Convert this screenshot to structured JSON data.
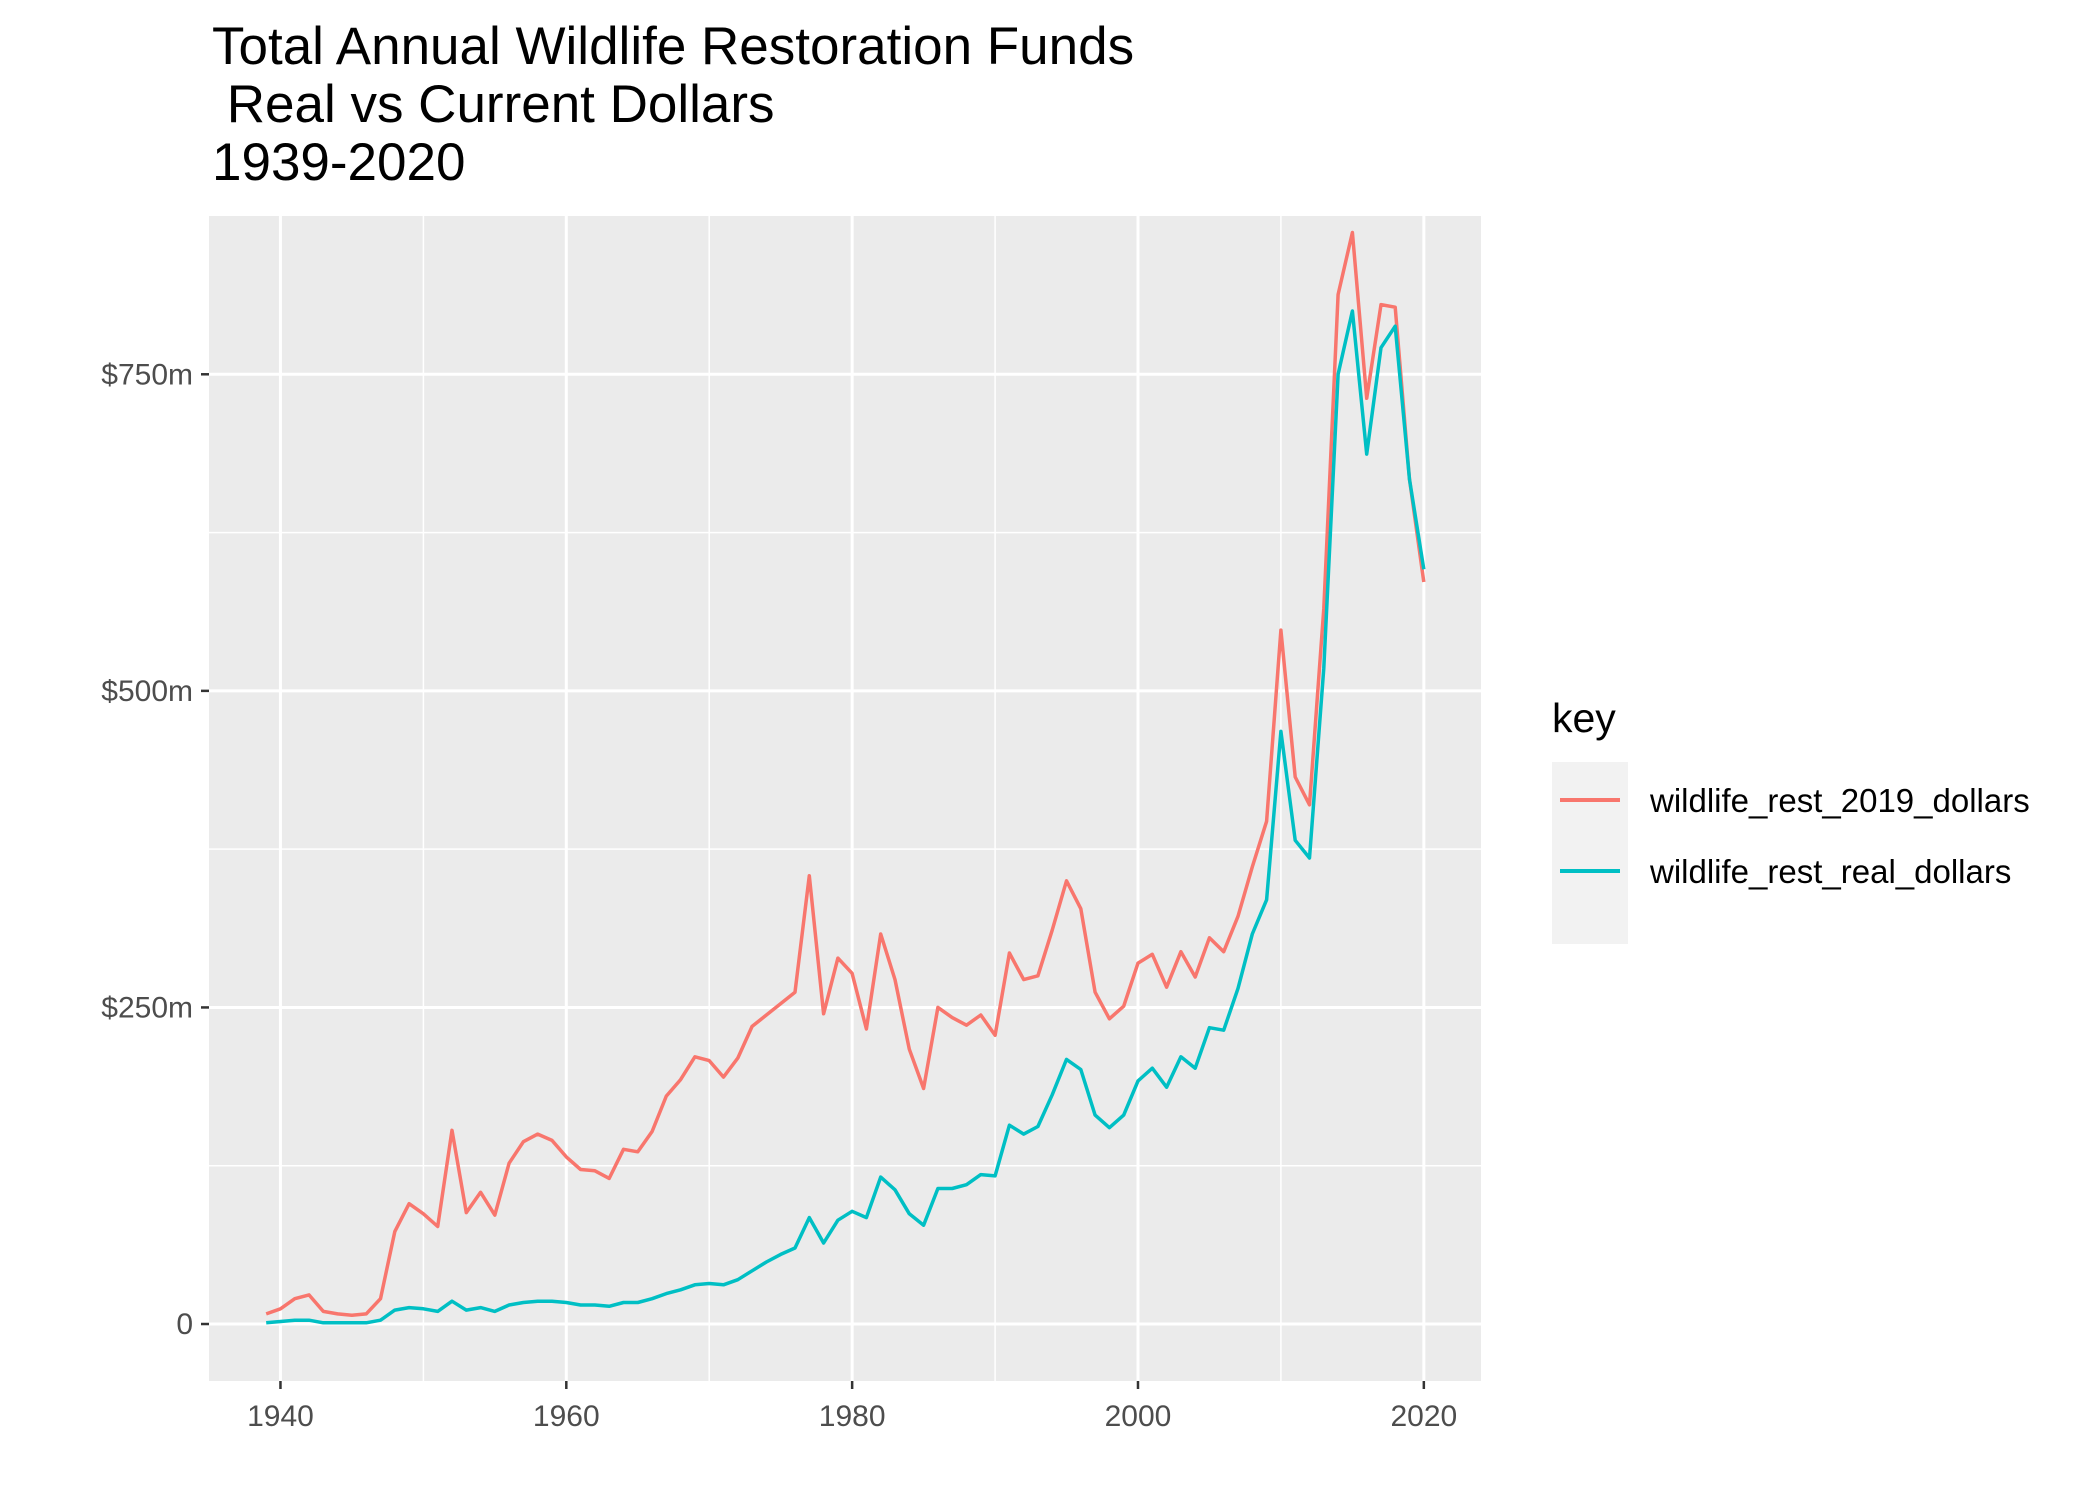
{
  "chart_data": {
    "type": "line",
    "title_lines": [
      "Total Annual Wildlife Restoration Funds",
      " Real vs Current Dollars",
      "1939-2020"
    ],
    "xlabel": "",
    "ylabel": "",
    "xlim": [
      1935,
      2024
    ],
    "ylim": [
      -45,
      875
    ],
    "x_ticks": [
      1940,
      1960,
      1980,
      2000,
      2020
    ],
    "x_tick_labels": [
      "1940",
      "1960",
      "1980",
      "2000",
      "2020"
    ],
    "y_ticks": [
      0,
      250,
      500,
      750
    ],
    "y_tick_labels": [
      "0",
      "$250m",
      "$500m",
      "$750m"
    ],
    "grid": true,
    "legend": {
      "title": "key",
      "position": "right"
    },
    "x": [
      1939,
      1940,
      1941,
      1942,
      1943,
      1944,
      1945,
      1946,
      1947,
      1948,
      1949,
      1950,
      1951,
      1952,
      1953,
      1954,
      1955,
      1956,
      1957,
      1958,
      1959,
      1960,
      1961,
      1962,
      1963,
      1964,
      1965,
      1966,
      1967,
      1968,
      1969,
      1970,
      1971,
      1972,
      1973,
      1974,
      1975,
      1976,
      1977,
      1978,
      1979,
      1980,
      1981,
      1982,
      1983,
      1984,
      1985,
      1986,
      1987,
      1988,
      1989,
      1990,
      1991,
      1992,
      1993,
      1994,
      1995,
      1996,
      1997,
      1998,
      1999,
      2000,
      2001,
      2002,
      2003,
      2004,
      2005,
      2006,
      2007,
      2008,
      2009,
      2010,
      2011,
      2012,
      2013,
      2014,
      2015,
      2016,
      2017,
      2018,
      2019,
      2020
    ],
    "series": [
      {
        "name": "wildlife_rest_2019_dollars",
        "color": "#F8766D",
        "values": [
          8,
          12,
          20,
          23,
          10,
          8,
          7,
          8,
          20,
          73,
          95,
          87,
          77,
          153,
          88,
          104,
          86,
          127,
          144,
          150,
          145,
          132,
          122,
          121,
          115,
          138,
          136,
          152,
          180,
          193,
          211,
          208,
          195,
          210,
          235,
          244,
          253,
          262,
          354,
          245,
          289,
          277,
          233,
          308,
          272,
          217,
          186,
          250,
          242,
          236,
          244,
          228,
          293,
          272,
          275,
          311,
          350,
          328,
          262,
          241,
          251,
          285,
          292,
          266,
          294,
          274,
          305,
          294,
          322,
          361,
          397,
          548,
          432,
          410,
          565,
          813,
          862,
          731,
          805,
          803,
          667,
          586
        ]
      },
      {
        "name": "wildlife_rest_real_dollars",
        "color": "#00BFC4",
        "values": [
          1,
          2,
          3,
          3,
          1,
          1,
          1,
          1,
          3,
          11,
          13,
          12,
          10,
          18,
          11,
          13,
          10,
          15,
          17,
          18,
          18,
          17,
          15,
          15,
          14,
          17,
          17,
          20,
          24,
          27,
          31,
          32,
          31,
          35,
          42,
          49,
          55,
          60,
          84,
          64,
          82,
          89,
          84,
          116,
          106,
          87,
          78,
          107,
          107,
          110,
          118,
          117,
          157,
          150,
          156,
          181,
          209,
          201,
          165,
          155,
          165,
          192,
          202,
          187,
          211,
          202,
          234,
          232,
          265,
          308,
          335,
          468,
          382,
          368,
          518,
          750,
          800,
          687,
          771,
          788,
          667,
          596
        ]
      }
    ]
  }
}
